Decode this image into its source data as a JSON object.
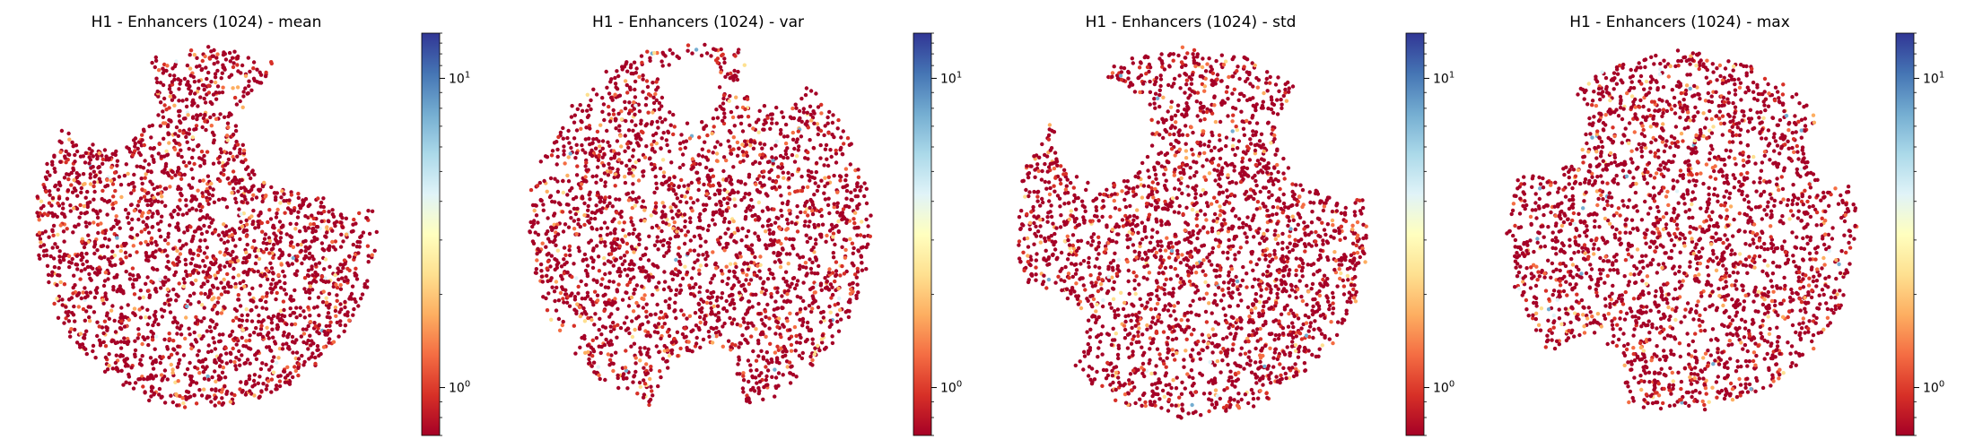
{
  "chart_data": [
    {
      "type": "scatter",
      "title": "H1 - Enhancers (1024) - mean",
      "xlabel": "",
      "ylabel": "",
      "colorbar": {
        "scale": "log",
        "range": [
          0.7,
          14
        ],
        "ticks": [
          1,
          10
        ],
        "tick_labels": [
          "10^0",
          "10^1"
        ],
        "colormap": "RdYlBu"
      },
      "axes_visible": false,
      "point_count": 2500
    },
    {
      "type": "scatter",
      "title": "H1 - Enhancers (1024) - var",
      "xlabel": "",
      "ylabel": "",
      "colorbar": {
        "scale": "log",
        "range": [
          0.7,
          14
        ],
        "ticks": [
          1,
          10
        ],
        "tick_labels": [
          "10^0",
          "10^1"
        ],
        "colormap": "RdYlBu"
      },
      "axes_visible": false,
      "point_count": 2500
    },
    {
      "type": "scatter",
      "title": "H1 - Enhancers (1024) - std",
      "xlabel": "",
      "ylabel": "",
      "colorbar": {
        "scale": "log",
        "range": [
          0.7,
          14
        ],
        "ticks": [
          1,
          10
        ],
        "tick_labels": [
          "10^0",
          "10^1"
        ],
        "colormap": "RdYlBu"
      },
      "axes_visible": false,
      "point_count": 2500
    },
    {
      "type": "scatter",
      "title": "H1 - Enhancers (1024) - max",
      "xlabel": "",
      "ylabel": "",
      "colorbar": {
        "scale": "log",
        "range": [
          0.7,
          14
        ],
        "ticks": [
          1,
          10
        ],
        "tick_labels": [
          "10^0",
          "10^1"
        ],
        "colormap": "RdYlBu"
      },
      "axes_visible": false,
      "point_count": 2500
    }
  ],
  "colors": {
    "cmap": [
      "#a50026",
      "#d73027",
      "#f46d43",
      "#fdae61",
      "#fee090",
      "#ffffbf",
      "#e0f3f8",
      "#abd9e9",
      "#74add1",
      "#4575b4",
      "#313695"
    ],
    "point_dominant": "#a50026"
  }
}
